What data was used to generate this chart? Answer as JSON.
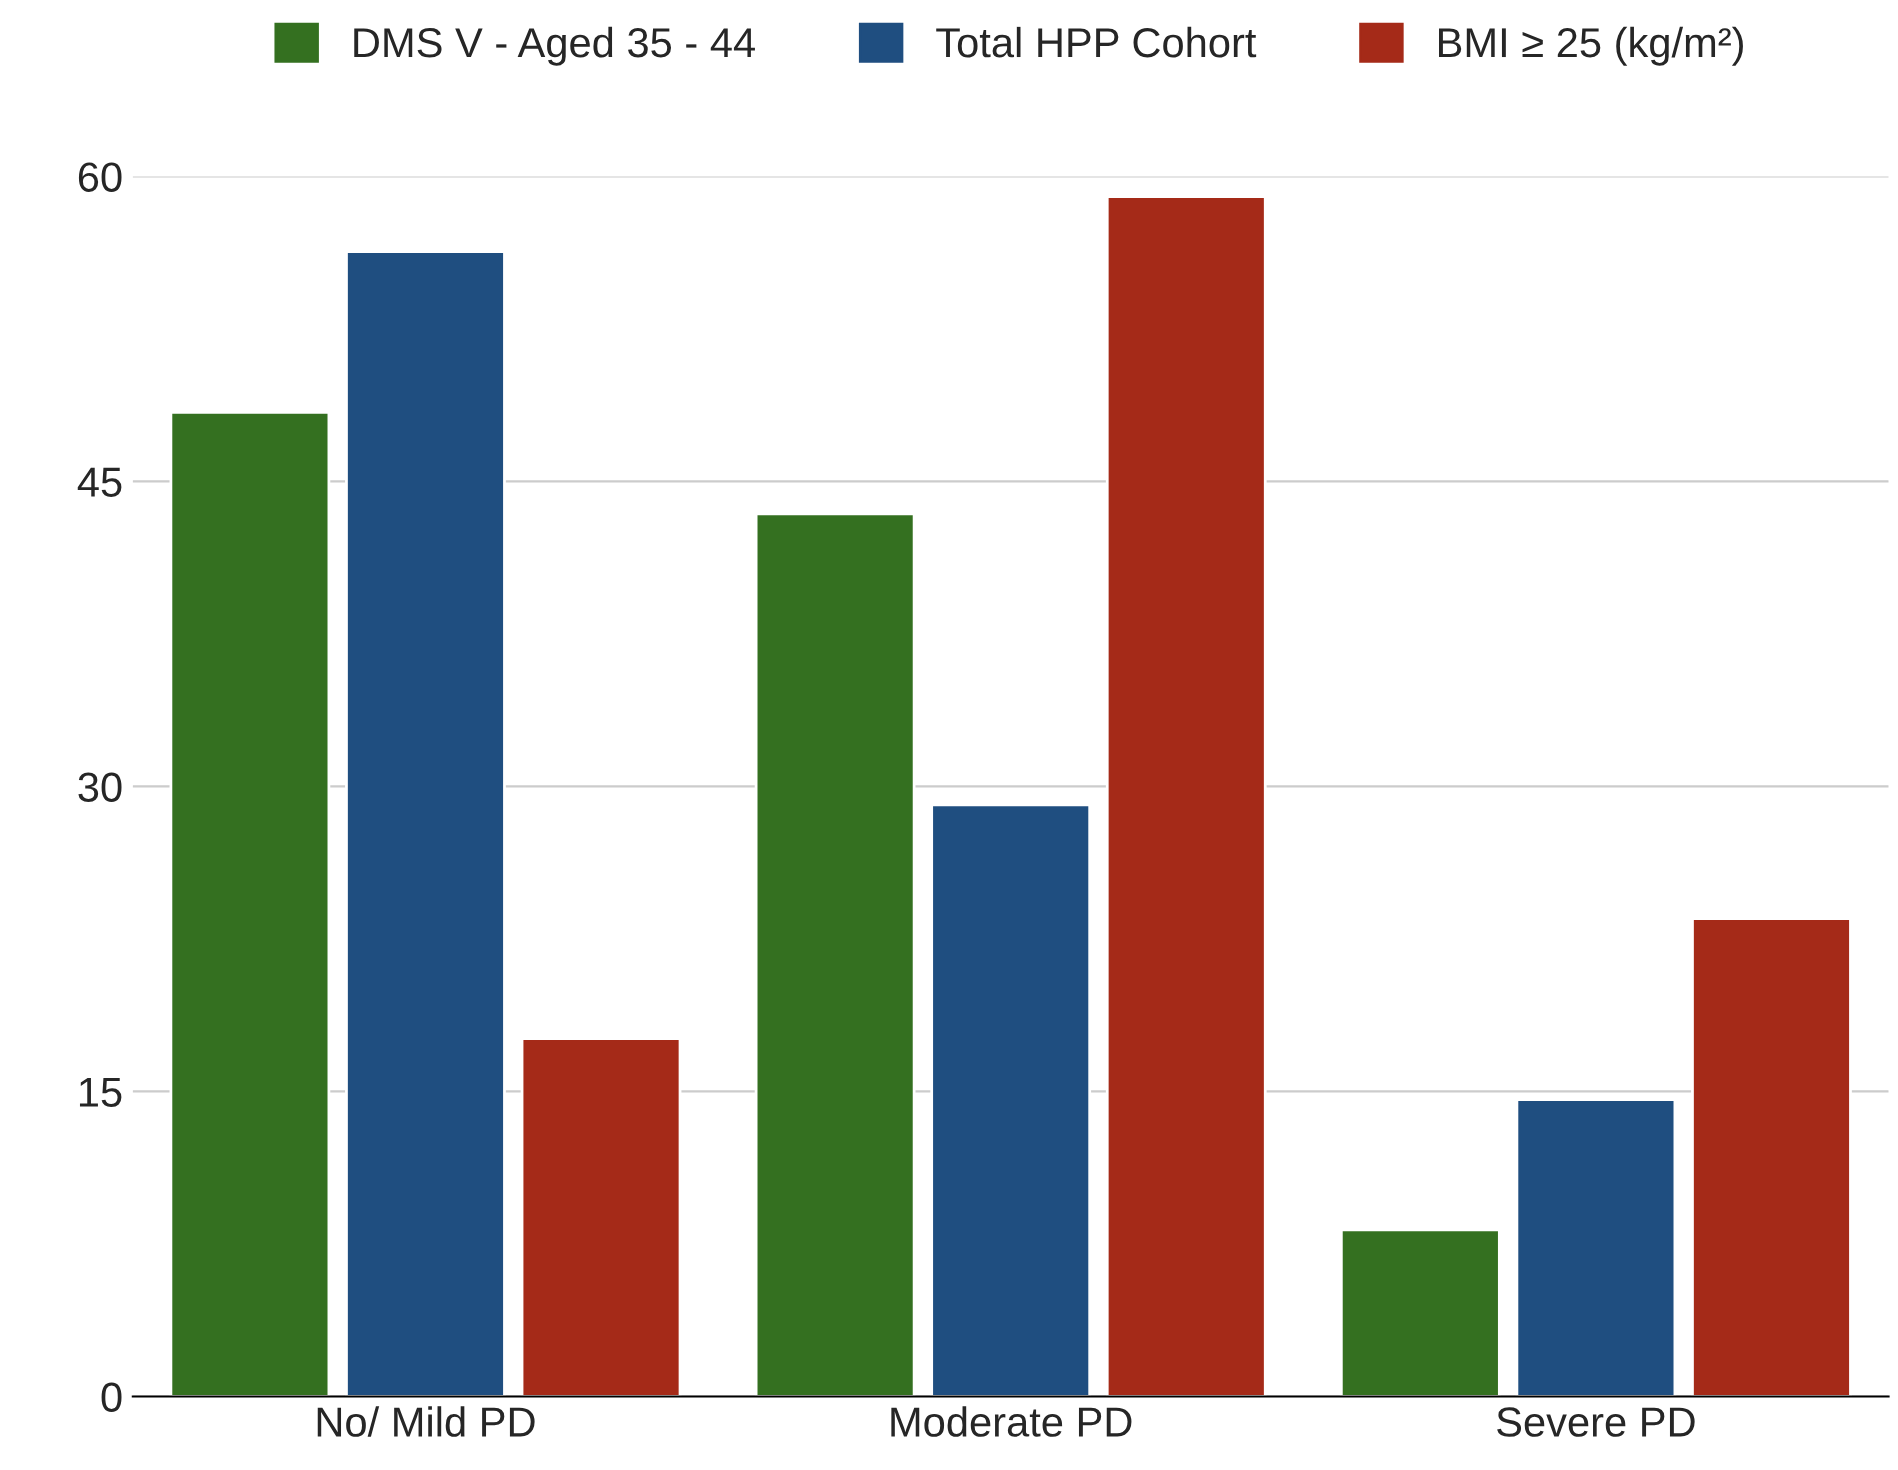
{
  "chart_data": {
    "type": "bar",
    "categories": [
      "No/ Mild PD",
      "Moderate PD",
      "Severe PD"
    ],
    "series": [
      {
        "name": "DMS V - Aged 35 - 44",
        "color": "#347020",
        "values": [
          48.4,
          43.4,
          8.2
        ]
      },
      {
        "name": "Total HPP Cohort",
        "color": "#1f4e80",
        "values": [
          56.3,
          29.1,
          14.6
        ]
      },
      {
        "name": "BMI ≥ 25 (kg/m²)",
        "color": "#a52a18",
        "values": [
          17.6,
          59.0,
          23.5
        ]
      }
    ],
    "ylim": [
      0,
      60
    ],
    "yticks": [
      0,
      15,
      30,
      45,
      60
    ],
    "grid": "y",
    "legend": "top"
  }
}
